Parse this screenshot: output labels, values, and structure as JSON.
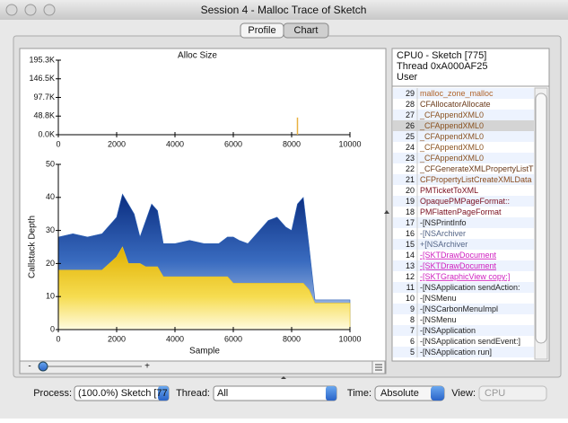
{
  "window": {
    "title": "Session 4 - Malloc Trace of Sketch"
  },
  "tabs": [
    "Profile",
    "Chart"
  ],
  "alloc_chart": {
    "type": "bar",
    "title": "Alloc Size",
    "x": [
      8200
    ],
    "values": [
      45
    ],
    "color": "#e8b040",
    "xlim": [
      0,
      10000
    ],
    "xticks": [
      0,
      2000,
      4000,
      6000,
      8000,
      10000
    ],
    "ylim": [
      0,
      195.3
    ],
    "yticks": [
      {
        "value": 0,
        "label": "0.0K"
      },
      {
        "value": 48.8,
        "label": "48.8K"
      },
      {
        "value": 97.7,
        "label": "97.7K"
      },
      {
        "value": 146.5,
        "label": "146.5K"
      },
      {
        "value": 195.3,
        "label": "195.3K"
      }
    ]
  },
  "depth_chart": {
    "type": "area",
    "xlabel": "Sample",
    "ylabel": "Callstack Depth",
    "x": [
      0,
      500,
      1000,
      1500,
      2000,
      2200,
      2400,
      2600,
      2800,
      3000,
      3200,
      3400,
      3600,
      4000,
      4500,
      5000,
      5500,
      5800,
      6000,
      6200,
      6500,
      7000,
      7200,
      7500,
      7800,
      8000,
      8200,
      8400,
      8600,
      8800,
      9000,
      9500,
      10000
    ],
    "series": [
      {
        "color": "#2b5fb4",
        "values": [
          28,
          29,
          28,
          29,
          34,
          41,
          38,
          35,
          28,
          33,
          38,
          36,
          26,
          26,
          27,
          26,
          26,
          28,
          28,
          27,
          26,
          31,
          33,
          34,
          31,
          30,
          38,
          40,
          25,
          9,
          9,
          9,
          9
        ]
      },
      {
        "color": "#f2c81c",
        "values": [
          18,
          18,
          18,
          18,
          22,
          25,
          20,
          20,
          20,
          19,
          19,
          19,
          16,
          16,
          16,
          16,
          16,
          16,
          14,
          14,
          14,
          14,
          14,
          14,
          14,
          14,
          14,
          14,
          12,
          8,
          8,
          8,
          8
        ]
      }
    ],
    "xlim": [
      0,
      10000
    ],
    "xticks": [
      0,
      2000,
      4000,
      6000,
      8000,
      10000
    ],
    "ylim": [
      0,
      50
    ],
    "yticks": [
      0,
      10,
      20,
      30,
      40,
      50
    ]
  },
  "zoom": {
    "minus": "-",
    "plus": "+"
  },
  "call_tree": {
    "header": [
      "CPU0 - Sketch [775]",
      "Thread 0xA000AF25",
      "User"
    ],
    "selected_row": 3,
    "rows": [
      {
        "depth": 29,
        "name": "malloc_zone_malloc",
        "color": "#b0642a"
      },
      {
        "depth": 28,
        "name": "CFAllocatorAllocate",
        "color": "#6a3a1a"
      },
      {
        "depth": 27,
        "name": "_CFAppendXML0",
        "color": "#8a5220"
      },
      {
        "depth": 26,
        "name": "_CFAppendXML0",
        "color": "#8a5220"
      },
      {
        "depth": 25,
        "name": "_CFAppendXML0",
        "color": "#8a5220"
      },
      {
        "depth": 24,
        "name": "_CFAppendXML0",
        "color": "#8a5220"
      },
      {
        "depth": 23,
        "name": "_CFAppendXML0",
        "color": "#8a5220"
      },
      {
        "depth": 22,
        "name": "_CFGenerateXMLPropertyListT",
        "color": "#6a3a1a"
      },
      {
        "depth": 21,
        "name": "CFPropertyListCreateXMLData",
        "color": "#8a4a1a"
      },
      {
        "depth": 20,
        "name": "PMTicketToXML",
        "color": "#7a1020"
      },
      {
        "depth": 19,
        "name": "OpaquePMPageFormat::",
        "color": "#7a1020"
      },
      {
        "depth": 18,
        "name": "PMFlattenPageFormat",
        "color": "#7a1020"
      },
      {
        "depth": 17,
        "name": "-[NSPrintInfo",
        "color": "#222222"
      },
      {
        "depth": 16,
        "name": "-[NSArchiver",
        "color": "#556688"
      },
      {
        "depth": 15,
        "name": "+[NSArchiver",
        "color": "#556688"
      },
      {
        "depth": 14,
        "name": "-[SKTDrawDocument",
        "color": "#d020c0"
      },
      {
        "depth": 13,
        "name": "-[SKTDrawDocument",
        "color": "#d020c0"
      },
      {
        "depth": 12,
        "name": "-[SKTGraphicView copy:]",
        "color": "#d020c0"
      },
      {
        "depth": 11,
        "name": "-[NSApplication sendAction:",
        "color": "#222222"
      },
      {
        "depth": 10,
        "name": "-[NSMenu",
        "color": "#222222"
      },
      {
        "depth": 9,
        "name": "-[NSCarbonMenuImpl",
        "color": "#222222"
      },
      {
        "depth": 8,
        "name": "-[NSMenu",
        "color": "#222222"
      },
      {
        "depth": 7,
        "name": "-[NSApplication",
        "color": "#222222"
      },
      {
        "depth": 6,
        "name": "-[NSApplication sendEvent:]",
        "color": "#222222"
      },
      {
        "depth": 5,
        "name": "-[NSApplication run]",
        "color": "#222222"
      }
    ]
  },
  "toolbar": {
    "process_label": "Process:",
    "process": "(100.0%) Sketch [77",
    "thread_label": "Thread:",
    "thread": "All",
    "time_label": "Time:",
    "time": "Absolute",
    "view_label": "View:",
    "view": "CPU"
  }
}
